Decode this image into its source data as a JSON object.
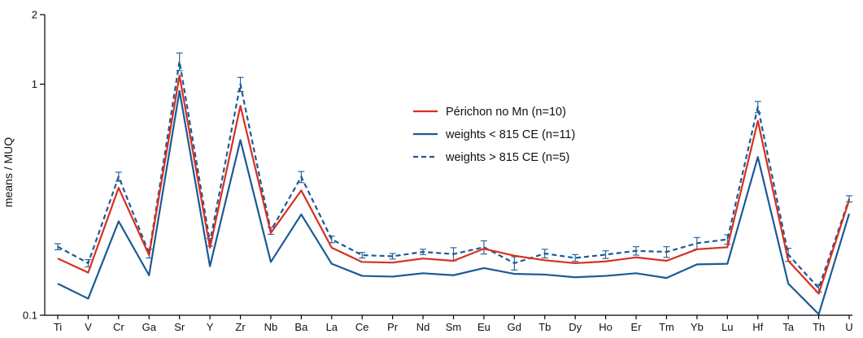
{
  "chart_data": {
    "type": "line",
    "title": "",
    "xlabel": "",
    "ylabel": "means / MUQ",
    "yscale": "log",
    "ylim": [
      0.1,
      2
    ],
    "yticks": [
      {
        "value": 0.1,
        "label": "0.1"
      },
      {
        "value": 1,
        "label": "1"
      },
      {
        "value": 2,
        "label": "2"
      }
    ],
    "grid": false,
    "legend_position": "center-right",
    "categories": [
      "Ti",
      "V",
      "Cr",
      "Ga",
      "Sr",
      "Y",
      "Zr",
      "Nb",
      "Ba",
      "La",
      "Ce",
      "Pr",
      "Nd",
      "Sm",
      "Eu",
      "Gd",
      "Tb",
      "Dy",
      "Ho",
      "Er",
      "Tm",
      "Yb",
      "Lu",
      "Hf",
      "Ta",
      "Th",
      "U"
    ],
    "series": [
      {
        "name": "Périchon no Mn (n=10)",
        "color": "#d7301f",
        "dash": "solid",
        "values": [
          0.176,
          0.153,
          0.356,
          0.182,
          1.09,
          0.196,
          0.806,
          0.227,
          0.347,
          0.196,
          0.17,
          0.169,
          0.176,
          0.172,
          0.194,
          0.181,
          0.173,
          0.168,
          0.171,
          0.178,
          0.172,
          0.193,
          0.197,
          0.693,
          0.172,
          0.124,
          0.315
        ]
      },
      {
        "name": "weights < 815 CE (n=11)",
        "color": "#1b5a96",
        "dash": "solid",
        "values": [
          0.137,
          0.118,
          0.255,
          0.149,
          0.936,
          0.163,
          0.573,
          0.17,
          0.273,
          0.167,
          0.148,
          0.147,
          0.152,
          0.149,
          0.16,
          0.151,
          0.15,
          0.146,
          0.148,
          0.152,
          0.145,
          0.166,
          0.167,
          0.484,
          0.137,
          0.101,
          0.275
        ]
      },
      {
        "name": "weights > 815 CE (n=5)",
        "color": "#1b5a96",
        "dash": "dashed",
        "values": [
          0.198,
          0.168,
          0.398,
          0.185,
          1.255,
          0.207,
          1.0,
          0.232,
          0.397,
          0.213,
          0.182,
          0.18,
          0.188,
          0.184,
          0.197,
          0.168,
          0.185,
          0.177,
          0.183,
          0.19,
          0.188,
          0.205,
          0.213,
          0.797,
          0.183,
          0.131,
          0.319
        ],
        "errors": [
          0.006,
          0.006,
          0.018,
          0.008,
          0.11,
          0.008,
          0.07,
          0.008,
          0.022,
          0.007,
          0.005,
          0.005,
          0.005,
          0.012,
          0.013,
          0.011,
          0.008,
          0.006,
          0.007,
          0.008,
          0.01,
          0.012,
          0.01,
          0.045,
          0.012,
          0.005,
          0.01
        ]
      }
    ]
  }
}
